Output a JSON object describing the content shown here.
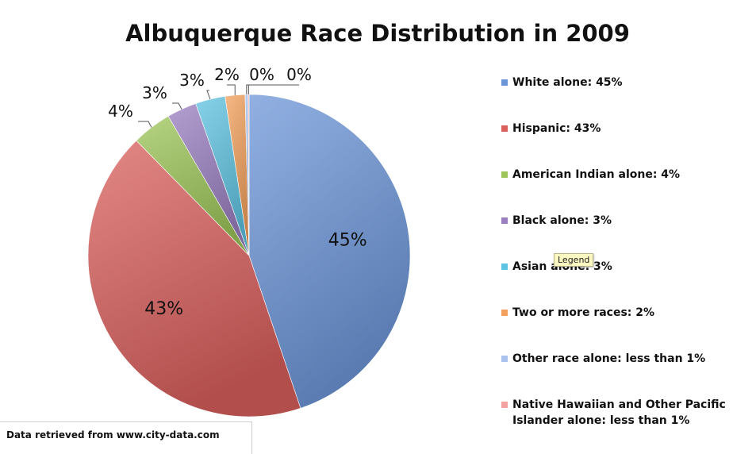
{
  "source_note": "Data retrieved from www.city-data.com",
  "tooltip": "Legend",
  "chart_data": {
    "type": "pie",
    "title": "Albuquerque Race Distribution in 2009",
    "slices": [
      {
        "name": "White alone",
        "value": 45,
        "label": "45%",
        "legend": "White alone: 45%",
        "color": "#6d96d8"
      },
      {
        "name": "Hispanic",
        "value": 43,
        "label": "43%",
        "legend": "Hispanic: 43%",
        "color": "#d9605e"
      },
      {
        "name": "American Indian alone",
        "value": 4,
        "label": "4%",
        "legend": "American Indian alone: 4%",
        "color": "#9dc55a"
      },
      {
        "name": "Black alone",
        "value": 3,
        "label": "3%",
        "legend": "Black alone: 3%",
        "color": "#9a7fc0"
      },
      {
        "name": "Asian alone",
        "value": 3,
        "label": "3%",
        "legend": "Asian alone: 3%",
        "color": "#5fc3e2"
      },
      {
        "name": "Two or more races",
        "value": 2,
        "label": "2%",
        "legend": "Two or more races: 2%",
        "color": "#f3a05c"
      },
      {
        "name": "Other race alone",
        "value": 0.3,
        "label": "0%",
        "legend": "Other race alone: less than 1%",
        "color": "#a9c3ee"
      },
      {
        "name": "Native Hawaiian and Other Pacific Islander alone",
        "value": 0.1,
        "label": "0%",
        "legend": "Native Hawaiian and Other Pacific Islander alone: less than 1%",
        "color": "#f2a3a1"
      }
    ],
    "legend_position": "right"
  }
}
